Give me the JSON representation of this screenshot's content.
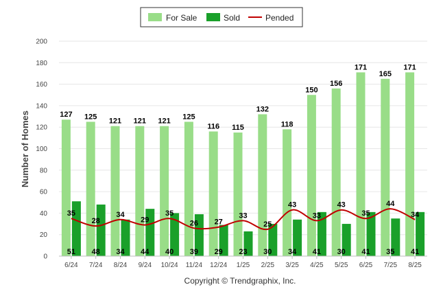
{
  "chart_data": {
    "type": "bar",
    "categories": [
      "6/24",
      "7/24",
      "8/24",
      "9/24",
      "10/24",
      "11/24",
      "12/24",
      "1/25",
      "2/25",
      "3/25",
      "4/25",
      "5/25",
      "6/25",
      "7/25",
      "8/25"
    ],
    "series": [
      {
        "name": "For Sale",
        "type": "bar",
        "color": "#99dd88",
        "values": [
          127,
          125,
          121,
          121,
          121,
          125,
          116,
          115,
          132,
          118,
          150,
          156,
          171,
          165,
          171
        ]
      },
      {
        "name": "Sold",
        "type": "bar",
        "color": "#1aa02a",
        "values": [
          51,
          48,
          34,
          44,
          40,
          39,
          29,
          23,
          30,
          34,
          41,
          30,
          41,
          35,
          41
        ]
      },
      {
        "name": "Pended",
        "type": "line",
        "color": "#c00000",
        "values": [
          35,
          28,
          34,
          29,
          35,
          26,
          27,
          33,
          25,
          43,
          33,
          43,
          35,
          44,
          34
        ]
      }
    ],
    "ylabel": "Number of Homes",
    "xlabel": "",
    "ylim": [
      0,
      200
    ],
    "yticks": [
      0,
      20,
      40,
      60,
      80,
      100,
      120,
      140,
      160,
      180,
      200
    ],
    "grid": true,
    "legend_position": "top-center"
  },
  "footer": {
    "copyright": "Copyright © Trendgraphix, Inc."
  }
}
